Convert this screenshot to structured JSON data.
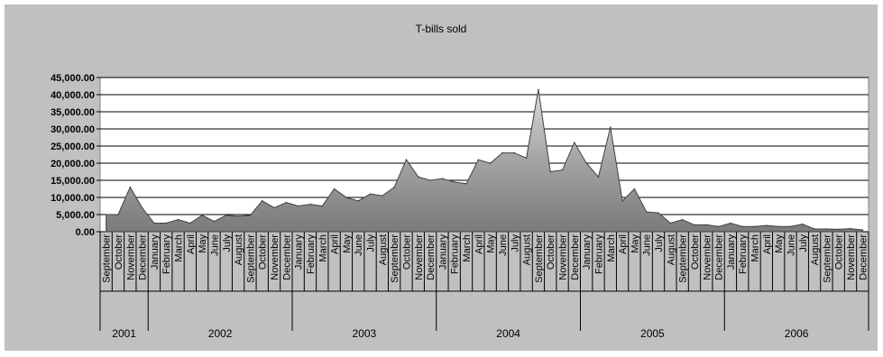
{
  "chart_data": {
    "type": "area",
    "title": "T-bills sold",
    "xlabel": "",
    "ylabel": "",
    "ylim": [
      0,
      45000
    ],
    "yticks": [
      "0.00",
      "5,000.00",
      "10,000.00",
      "15,000.00",
      "20,000.00",
      "25,000.00",
      "30,000.00",
      "35,000.00",
      "40,000.00",
      "45,000.00"
    ],
    "grid": true,
    "legend": "none",
    "colors": {
      "plot_background": "#ffffff",
      "frame_background": "#c0c0c0",
      "area_light": "#dcdcdc",
      "area_mid": "#a8a8a8",
      "area_dark": "#7a7a7a",
      "outline": "#404040"
    },
    "year_groups": [
      {
        "label": "2001",
        "months": [
          "September",
          "October",
          "November",
          "December"
        ]
      },
      {
        "label": "2002",
        "months": [
          "January",
          "February",
          "March",
          "April",
          "May",
          "June",
          "July",
          "August",
          "September",
          "October",
          "November",
          "December"
        ]
      },
      {
        "label": "2003",
        "months": [
          "January",
          "February",
          "March",
          "April",
          "May",
          "June",
          "July",
          "August",
          "September",
          "October",
          "November",
          "December"
        ]
      },
      {
        "label": "2004",
        "months": [
          "January",
          "February",
          "March",
          "April",
          "May",
          "June",
          "July",
          "August",
          "September",
          "October",
          "November",
          "December"
        ]
      },
      {
        "label": "2005",
        "months": [
          "January",
          "February",
          "March",
          "April",
          "May",
          "June",
          "July",
          "August",
          "September",
          "October",
          "November",
          "December"
        ]
      },
      {
        "label": "2006",
        "months": [
          "January",
          "February",
          "March",
          "April",
          "May",
          "June",
          "July",
          "August",
          "September",
          "October",
          "November",
          "December"
        ]
      }
    ],
    "series": [
      {
        "values": [
          5000,
          5000,
          13000,
          7000,
          2500,
          2500,
          3500,
          2500,
          4800,
          3000,
          4800,
          4500,
          4800,
          9000,
          7000,
          8500,
          7500,
          8000,
          7500,
          12500,
          10000,
          9000,
          11000,
          10500,
          13000,
          21000,
          16000,
          15000,
          15500,
          14500,
          14000,
          21000,
          20000,
          23000,
          23000,
          21500,
          41500,
          17500,
          18000,
          26000,
          20000,
          16000,
          30500,
          9000,
          12500,
          5800,
          5500,
          2500,
          3500,
          2000,
          2000,
          1500,
          2500,
          1500,
          1500,
          1800,
          1500,
          1500,
          2200,
          800,
          800,
          700,
          900,
          500
        ]
      }
    ]
  }
}
